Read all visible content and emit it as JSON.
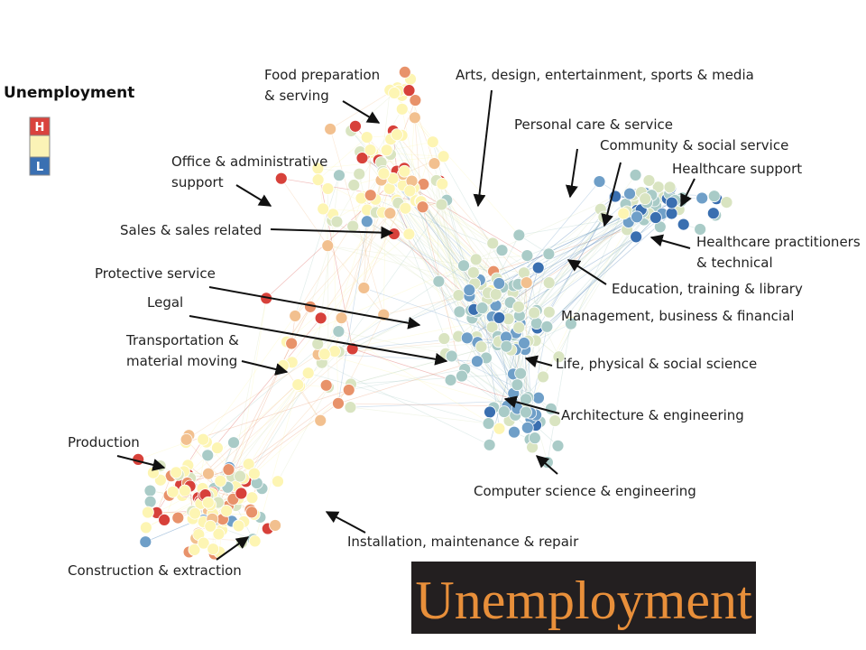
{
  "legend": {
    "title": "Unemployment",
    "high": "H",
    "low": "L"
  },
  "labels": [
    {
      "lines": [
        "Food preparation",
        "& serving"
      ]
    },
    {
      "lines": [
        "Arts, design, entertainment, sports & media"
      ]
    },
    {
      "lines": [
        "Personal care & service"
      ]
    },
    {
      "lines": [
        "Community & social service"
      ]
    },
    {
      "lines": [
        "Healthcare support"
      ]
    },
    {
      "lines": [
        "Healthcare practitioners",
        "& technical"
      ]
    },
    {
      "lines": [
        "Office & administrative",
        "support"
      ]
    },
    {
      "lines": [
        "Sales & sales related"
      ]
    },
    {
      "lines": [
        "Protective service"
      ]
    },
    {
      "lines": [
        "Legal"
      ]
    },
    {
      "lines": [
        "Transportation &",
        "material moving"
      ]
    },
    {
      "lines": [
        "Production"
      ]
    },
    {
      "lines": [
        "Construction & extraction"
      ]
    },
    {
      "lines": [
        "Installation, maintenance & repair"
      ]
    },
    {
      "lines": [
        "Computer science & engineering"
      ]
    },
    {
      "lines": [
        "Architecture & engineering"
      ]
    },
    {
      "lines": [
        "Life, physical & social science"
      ]
    },
    {
      "lines": [
        "Management, business & financial"
      ]
    },
    {
      "lines": [
        "Education, training & library"
      ]
    }
  ],
  "banner": "Unemployment"
}
